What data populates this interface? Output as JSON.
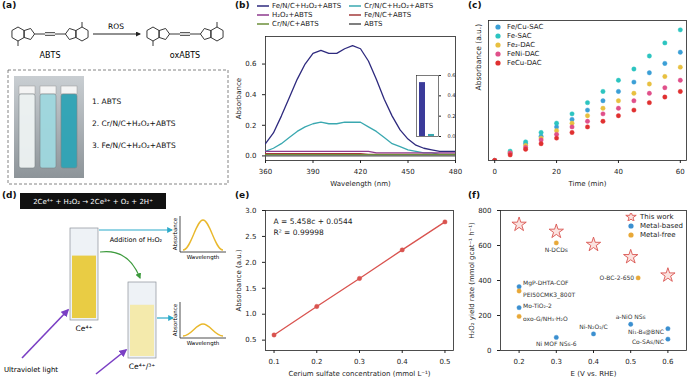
{
  "chart_data": [
    {
      "panel_label": "(b)",
      "type": "line",
      "x_label": "Wavelength (nm)",
      "y_label": "Absorbance",
      "x": [
        360,
        365,
        370,
        375,
        380,
        385,
        390,
        395,
        400,
        405,
        410,
        415,
        420,
        425,
        430,
        435,
        440,
        445,
        450,
        455,
        460,
        465,
        470,
        475,
        480
      ],
      "series": [
        {
          "name": "Fe/N/C+H₂O₂+ABTS",
          "color": "#2e2a7e",
          "values": [
            0.08,
            0.15,
            0.26,
            0.38,
            0.5,
            0.6,
            0.67,
            0.69,
            0.67,
            0.67,
            0.7,
            0.72,
            0.7,
            0.62,
            0.5,
            0.37,
            0.26,
            0.17,
            0.11,
            0.07,
            0.05,
            0.04,
            0.03,
            0.03,
            0.03
          ]
        },
        {
          "name": "Cr/N/C+H₂O₂+ABTS",
          "color": "#3aa8b0",
          "values": [
            0.03,
            0.05,
            0.08,
            0.12,
            0.16,
            0.19,
            0.21,
            0.22,
            0.21,
            0.21,
            0.22,
            0.22,
            0.22,
            0.19,
            0.16,
            0.12,
            0.08,
            0.06,
            0.04,
            0.03,
            0.02,
            0.02,
            0.01,
            0.01,
            0.01
          ]
        },
        {
          "name": "H₂O₂+ABTS",
          "color": "#8e3a8e",
          "values": [
            0.03,
            0.03,
            0.03,
            0.03,
            0.03,
            0.03,
            0.03,
            0.03,
            0.03,
            0.03,
            0.03,
            0.03,
            0.03,
            0.03,
            0.02,
            0.02,
            0.02,
            0.02,
            0.02,
            0.02,
            0.02,
            0.02,
            0.02,
            0.02,
            0.02
          ]
        },
        {
          "name": "Fe/N/C+ABTS",
          "color": "#a33b3b",
          "values": [
            0.015,
            0.015,
            0.015,
            0.015,
            0.015,
            0.015,
            0.015,
            0.015,
            0.015,
            0.015,
            0.015,
            0.015,
            0.015,
            0.01,
            0.01,
            0.01,
            0.01,
            0.01,
            0.01,
            0.01,
            0.01,
            0.01,
            0.01,
            0.01,
            0.01
          ]
        },
        {
          "name": "Cr/N/C+ABTS",
          "color": "#6d8f3a",
          "values": [
            0.008,
            0.008,
            0.008,
            0.008,
            0.008,
            0.008,
            0.008,
            0.008,
            0.008,
            0.008,
            0.008,
            0.008,
            0.008,
            0.008,
            0.008,
            0.008,
            0.008,
            0.008,
            0.008,
            0.008,
            0.008,
            0.008,
            0.008,
            0.008,
            0.008
          ]
        },
        {
          "name": "ABTS",
          "color": "#555555",
          "values": [
            0,
            0,
            0,
            0,
            0,
            0,
            0,
            0,
            0,
            0,
            0,
            0,
            0,
            0,
            0,
            0,
            0,
            0,
            0,
            0,
            0,
            0,
            0,
            0,
            0
          ]
        }
      ],
      "xlim": [
        360,
        480
      ],
      "xticks": [
        360,
        390,
        420,
        450,
        480
      ],
      "ylim": [
        -0.03,
        0.78
      ],
      "yticks": [
        {
          "value": 0,
          "label": "0.0"
        },
        0.2,
        0.4,
        0.6
      ],
      "legend": "top",
      "inset": {
        "type": "bar",
        "categories": [
          null,
          null
        ],
        "values": [
          0.53,
          0.02
        ],
        "colors": [
          "#3b3b9a",
          "#3aa8b0"
        ],
        "ylim": [
          0,
          0.6
        ],
        "yticks": [
          {
            "value": 0,
            "label": "0.0"
          },
          0.2,
          0.4,
          0.6
        ]
      }
    },
    {
      "panel_label": "(c)",
      "type": "scatter",
      "marker": "circle",
      "x_label": "Time (min)",
      "y_label": "Absorbance (a.u.)",
      "x": [
        0,
        5,
        10,
        15,
        20,
        25,
        30,
        35,
        40,
        45,
        50,
        55,
        60
      ],
      "series": [
        {
          "name": "Fe/Cu-SAC",
          "color": "#3b9fd6",
          "values": [
            0,
            0.004,
            0.009,
            0.013,
            0.018,
            0.022,
            0.027,
            0.032,
            0.037,
            0.042,
            0.047,
            0.052,
            0.058
          ]
        },
        {
          "name": "Fe-SAC",
          "color": "#2cc4c0",
          "values": [
            0,
            0.005,
            0.01,
            0.015,
            0.02,
            0.025,
            0.031,
            0.037,
            0.043,
            0.049,
            0.056,
            0.063,
            0.07
          ]
        },
        {
          "name": "Fe₂-DAC",
          "color": "#e8c040",
          "values": [
            0,
            0.004,
            0.008,
            0.012,
            0.016,
            0.02,
            0.024,
            0.028,
            0.032,
            0.036,
            0.041,
            0.045,
            0.05
          ]
        },
        {
          "name": "FeNi-DAC",
          "color": "#e0508a",
          "values": [
            0,
            0.004,
            0.007,
            0.011,
            0.014,
            0.018,
            0.021,
            0.025,
            0.028,
            0.032,
            0.036,
            0.039,
            0.043
          ]
        },
        {
          "name": "FeCu-DAC",
          "color": "#e03030",
          "values": [
            0,
            0.003,
            0.006,
            0.009,
            0.012,
            0.015,
            0.018,
            0.021,
            0.024,
            0.027,
            0.031,
            0.034,
            0.037
          ]
        }
      ],
      "xlim": [
        -2,
        62
      ],
      "xticks": [
        0,
        20,
        40,
        60
      ],
      "ylim": [
        0,
        0.075
      ],
      "tick_labels": "x",
      "legend": "top-left"
    },
    {
      "panel_label": "(e)",
      "type": "line",
      "marker": "circle",
      "color": "#d9534f",
      "x_label": "Cerium sulfate concentration (mmol L⁻¹)",
      "y_label": "Absorbance (a.u.)",
      "x": [
        0.1,
        0.2,
        0.3,
        0.4,
        0.5
      ],
      "values": [
        0.6,
        1.15,
        1.69,
        2.24,
        2.78
      ],
      "annotations": [
        "A = 5.458c + 0.0544",
        "R² = 0.99998"
      ],
      "xlim": [
        0.08,
        0.52
      ],
      "xticks": [
        0.1,
        0.2,
        0.3,
        0.4,
        0.5
      ],
      "ylim": [
        0.3,
        3.0
      ],
      "yticks": [
        0.5,
        {
          "value": 1,
          "label": "1.0"
        },
        1.5,
        {
          "value": 2,
          "label": "2.0"
        },
        2.5,
        {
          "value": 3,
          "label": "3.0"
        }
      ]
    },
    {
      "panel_label": "(f)",
      "type": "scatter",
      "x_label": "E (V vs. RHE)",
      "y_label": "H₂O₂ yield rate (mmol gcat⁻¹ h⁻¹)",
      "series": [
        {
          "name": "This work",
          "color": "#d9534f",
          "marker": "star",
          "x": [
            0.2,
            0.3,
            0.4,
            0.5,
            0.6
          ],
          "values": [
            720,
            680,
            605,
            535,
            430
          ]
        },
        {
          "name": "Metal-based",
          "color": "#3b8fd0",
          "marker": "circle",
          "x": [
            0.2,
            0.2,
            0.5,
            0.4,
            0.3,
            0.6,
            0.6
          ],
          "values": [
            365,
            245,
            150,
            95,
            75,
            125,
            65
          ],
          "point_labels": [
            "MgP-DHTA-COF",
            "Mo-TiO₂-2",
            "a-NiO NSs",
            "Ni-N₂O₂/C",
            "Ni MOF NSs-6",
            "Ni₁-B₄@BNC",
            "Co-SAs/NC"
          ]
        },
        {
          "name": "Metal-free",
          "color": "#e8a838",
          "marker": "circle",
          "x": [
            0.3,
            0.2,
            0.2,
            0.52
          ],
          "values": [
            615,
            340,
            195,
            415
          ],
          "point_labels": [
            "N-DCDs",
            "PEI50CMK3_800T",
            "oxo-G/NH₃·H₂O",
            "O-BC-2-650"
          ]
        }
      ],
      "xlim": [
        0.15,
        0.65
      ],
      "xticks": [
        0.2,
        0.3,
        0.4,
        0.5,
        0.6
      ],
      "ylim": [
        0,
        800
      ],
      "yticks": [
        0,
        200,
        400,
        600,
        800
      ],
      "legend": "top-right"
    }
  ],
  "diagrams": {
    "a": {
      "panel_label": "(a)",
      "reactant": "ABTS",
      "reagent": "ROS",
      "product": "oxABTS",
      "samples": [
        "1. ABTS",
        "2. Cr/N/C+H₂O₂+ABTS",
        "3. Fe/N/C+H₂O₂+ABTS"
      ]
    },
    "d": {
      "panel_label": "(d)",
      "equation": "2Ce⁴⁺ + H₂O₂ → 2Ce³⁺ + O₂ + 2H⁺",
      "light": "Ultraviolet light",
      "step": "Addition of H₂O₂",
      "cuvettes": [
        "Ce⁴⁺",
        "Ce⁴⁺/³⁺"
      ],
      "graph_axes": {
        "y": "Absorbance",
        "x": "Wavelength"
      }
    }
  }
}
